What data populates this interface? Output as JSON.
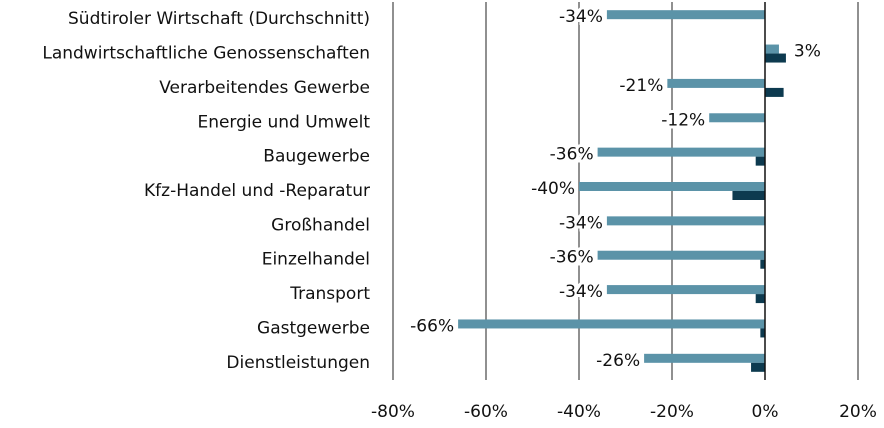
{
  "chart_data": {
    "type": "hbar",
    "categories": [
      "Südtiroler Wirtschaft (Durchschnitt)",
      "Landwirtschaftliche Genossenschaften",
      "Verarbeitendes Gewerbe",
      "Energie und Umwelt",
      "Baugewerbe",
      "Kfz-Handel und -Reparatur",
      "Großhandel",
      "Einzelhandel",
      "Transport",
      "Gastgewerbe",
      "Dienstleistungen"
    ],
    "series": [
      {
        "color": "#5b93a8",
        "values": [
          -34,
          3,
          -21,
          -12,
          -36,
          -40,
          -34,
          -36,
          -34,
          -66,
          -26
        ],
        "value_labels": [
          "-34%",
          "3%",
          "-21%",
          "-12%",
          "-36%",
          "-40%",
          "-34%",
          "-36%",
          "-34%",
          "-66%",
          "-26%"
        ]
      },
      {
        "color": "#0d3a4f",
        "values": [
          0,
          4.5,
          4,
          0,
          -2,
          -7,
          0,
          -1,
          -2,
          -1,
          -3
        ]
      }
    ],
    "xlim": [
      -80,
      20
    ],
    "xticks": [
      {
        "value": -80,
        "label": "-80%"
      },
      {
        "value": -60,
        "label": "-60%"
      },
      {
        "value": -40,
        "label": "-40%"
      },
      {
        "value": -20,
        "label": "-20%"
      },
      {
        "value": 0,
        "label": "0%"
      },
      {
        "value": 20,
        "label": "20%"
      }
    ],
    "grid": true
  }
}
